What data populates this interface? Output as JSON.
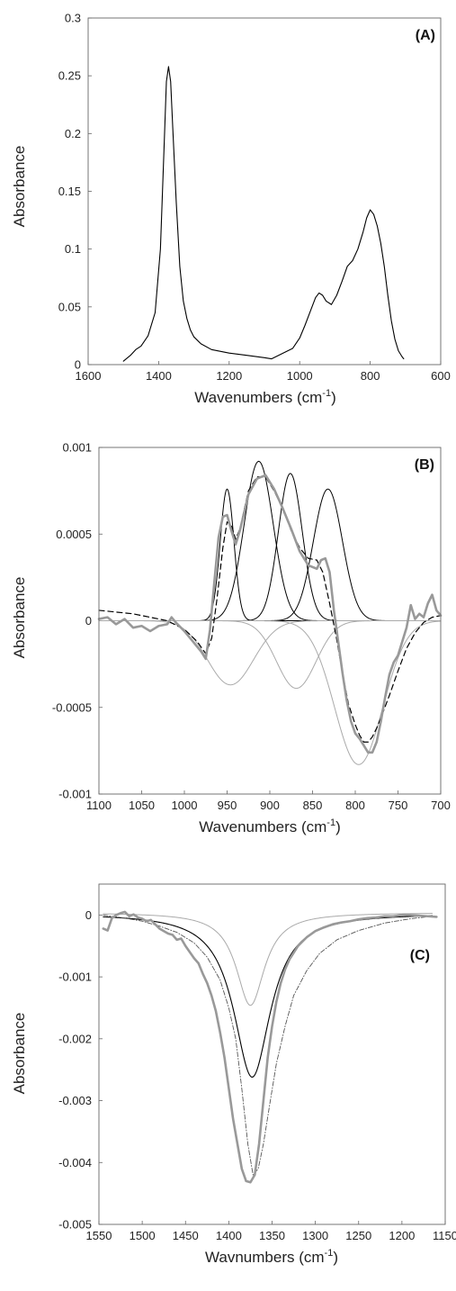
{
  "chart_data": [
    {
      "type": "line",
      "panel_label": "(A)",
      "xlabel": "Wavenumbers (cm",
      "xlabel_sup": "-1",
      "xlabel_end": ")",
      "ylabel": "Absorbance",
      "xlim": [
        1600,
        600
      ],
      "ylim": [
        0,
        0.3
      ],
      "x_ticks": [
        1600,
        1400,
        1200,
        1000,
        800,
        600
      ],
      "x_tick_labels": [
        "1600",
        "1400",
        "1200",
        "1000",
        "800",
        "600"
      ],
      "y_ticks": [
        0,
        0.05,
        0.1,
        0.15,
        0.2,
        0.25,
        0.3
      ],
      "y_tick_labels": [
        "0",
        "0.05",
        "0.1",
        "0.15",
        "0.2",
        "0.25",
        "0.3"
      ],
      "series": [
        {
          "color": "#000000",
          "style": "solid",
          "width": 1.1,
          "x": [
            1500,
            1480,
            1465,
            1450,
            1430,
            1410,
            1395,
            1385,
            1378,
            1372,
            1366,
            1360,
            1350,
            1340,
            1330,
            1320,
            1310,
            1300,
            1280,
            1250,
            1200,
            1150,
            1100,
            1080,
            1060,
            1040,
            1020,
            1000,
            985,
            970,
            955,
            945,
            935,
            925,
            910,
            895,
            880,
            865,
            850,
            835,
            820,
            810,
            800,
            790,
            780,
            770,
            760,
            750,
            740,
            730,
            720,
            710,
            705
          ],
          "y": [
            0.003,
            0.008,
            0.013,
            0.016,
            0.025,
            0.045,
            0.1,
            0.185,
            0.245,
            0.258,
            0.245,
            0.205,
            0.14,
            0.085,
            0.055,
            0.04,
            0.03,
            0.024,
            0.018,
            0.013,
            0.01,
            0.008,
            0.006,
            0.005,
            0.008,
            0.011,
            0.014,
            0.023,
            0.034,
            0.046,
            0.058,
            0.062,
            0.06,
            0.055,
            0.052,
            0.06,
            0.072,
            0.085,
            0.09,
            0.1,
            0.115,
            0.127,
            0.134,
            0.13,
            0.12,
            0.105,
            0.085,
            0.06,
            0.038,
            0.022,
            0.012,
            0.007,
            0.005
          ]
        }
      ]
    },
    {
      "type": "line",
      "panel_label": "(B)",
      "xlabel": "Wavenumbers (cm",
      "xlabel_sup": "-1",
      "xlabel_end": ")",
      "ylabel": "Absorbance",
      "xlim": [
        1100,
        700
      ],
      "ylim": [
        -0.001,
        0.001
      ],
      "x_ticks": [
        1100,
        1050,
        1000,
        950,
        900,
        850,
        800,
        750,
        700
      ],
      "x_tick_labels": [
        "1100",
        "1050",
        "1000",
        "950",
        "900",
        "850",
        "800",
        "750",
        "700"
      ],
      "y_ticks": [
        -0.001,
        -0.0005,
        0,
        0.0005,
        0.001
      ],
      "y_tick_labels": [
        "-0.001",
        "-0.0005",
        "0",
        "0.0005",
        "0.001"
      ],
      "gaussians": [
        {
          "color": "#000000",
          "width": 1.0,
          "center": 950,
          "height": 0.00076,
          "sigma": 8
        },
        {
          "color": "#000000",
          "width": 1.0,
          "center": 913,
          "height": 0.00092,
          "sigma": 17
        },
        {
          "color": "#000000",
          "width": 1.0,
          "center": 876,
          "height": 0.00085,
          "sigma": 14
        },
        {
          "color": "#000000",
          "width": 1.0,
          "center": 832,
          "height": 0.00076,
          "sigma": 17
        },
        {
          "color": "#aaaaaa",
          "width": 1.0,
          "center": 946,
          "height": -0.00037,
          "sigma": 27
        },
        {
          "color": "#aaaaaa",
          "width": 1.0,
          "center": 869,
          "height": -0.00039,
          "sigma": 23
        },
        {
          "color": "#aaaaaa",
          "width": 1.0,
          "center": 796,
          "height": -0.00083,
          "sigma": 28
        }
      ],
      "series": [
        {
          "color": "#000000",
          "style": "dashed",
          "width": 1.2,
          "x": [
            1100,
            1080,
            1060,
            1040,
            1020,
            1000,
            985,
            975,
            968,
            962,
            955,
            950,
            945,
            940,
            935,
            925,
            915,
            905,
            895,
            885,
            875,
            865,
            855,
            845,
            838,
            830,
            822,
            815,
            808,
            800,
            795,
            790,
            785,
            780,
            775,
            770,
            760,
            750,
            740,
            730,
            720,
            710,
            700
          ],
          "y": [
            6e-05,
            5e-05,
            4e-05,
            2e-05,
            0.0,
            -5e-05,
            -0.00012,
            -0.00019,
            -0.0001,
            0.00012,
            0.00042,
            0.00057,
            0.00055,
            0.00047,
            0.00053,
            0.00075,
            0.00083,
            0.00083,
            0.00075,
            0.00065,
            0.00052,
            0.00042,
            0.00036,
            0.00035,
            0.00028,
            0.0001,
            -0.0001,
            -0.0003,
            -0.00048,
            -0.0006,
            -0.00066,
            -0.0007,
            -0.0007,
            -0.00067,
            -0.00062,
            -0.00056,
            -0.00043,
            -0.00029,
            -0.00016,
            -7e-05,
            -1e-05,
            2e-05,
            3e-05
          ]
        },
        {
          "color": "#999999",
          "style": "solid",
          "width": 2.6,
          "x": [
            1100,
            1090,
            1080,
            1070,
            1060,
            1050,
            1040,
            1030,
            1020,
            1015,
            1010,
            1000,
            990,
            980,
            975,
            970,
            965,
            960,
            955,
            950,
            945,
            940,
            935,
            925,
            915,
            905,
            895,
            885,
            875,
            865,
            855,
            845,
            840,
            835,
            830,
            825,
            820,
            815,
            810,
            805,
            800,
            795,
            790,
            785,
            780,
            775,
            770,
            765,
            760,
            755,
            750,
            745,
            740,
            735,
            730,
            725,
            720,
            715,
            710,
            705,
            700
          ],
          "y": [
            1e-05,
            2e-05,
            -2e-05,
            1e-05,
            -4e-05,
            -3e-05,
            -6e-05,
            -3e-05,
            -2e-05,
            2e-05,
            -1e-05,
            -6e-05,
            -0.00012,
            -0.00018,
            -0.00022,
            -5e-05,
            0.00022,
            0.00048,
            0.0006,
            0.00061,
            0.00052,
            0.00044,
            0.00052,
            0.00073,
            0.00082,
            0.00084,
            0.00076,
            0.00065,
            0.00053,
            0.0004,
            0.00032,
            0.0003,
            0.00035,
            0.00036,
            0.00028,
            6e-05,
            -0.00012,
            -0.0003,
            -0.00046,
            -0.00058,
            -0.00065,
            -0.00068,
            -0.00072,
            -0.00076,
            -0.00076,
            -0.0007,
            -0.00058,
            -0.00044,
            -0.00031,
            -0.00024,
            -0.0002,
            -0.00012,
            -4e-05,
            9e-05,
            1e-05,
            4e-05,
            2e-05,
            0.0001,
            0.00015,
            6e-05,
            3e-05
          ]
        }
      ]
    },
    {
      "type": "line",
      "panel_label": "(C)",
      "xlabel": "Wavnumbers (cm",
      "xlabel_sup": "-1",
      "xlabel_end": ")",
      "ylabel": "Absorbance",
      "xlim": [
        1550,
        1150
      ],
      "ylim": [
        -0.005,
        0.0005
      ],
      "x_ticks": [
        1550,
        1500,
        1450,
        1400,
        1350,
        1300,
        1250,
        1200,
        1150
      ],
      "x_tick_labels": [
        "1550",
        "1500",
        "1450",
        "1400",
        "1350",
        "1300",
        "1250",
        "1200",
        "1150"
      ],
      "y_ticks": [
        -0.005,
        -0.004,
        -0.003,
        -0.002,
        -0.001,
        0
      ],
      "y_tick_labels": [
        "-0.005",
        "-0.004",
        "-0.003",
        "-0.002",
        "-0.001",
        "0"
      ],
      "lorentzians": [
        {
          "color": "#aaaaaa",
          "width": 1.0,
          "center": 1375,
          "height": -0.0015,
          "gamma": 20,
          "offset": 4e-05
        },
        {
          "color": "#000000",
          "width": 1.1,
          "center": 1373,
          "height": -0.00265,
          "gamma": 26,
          "offset": 3e-05
        }
      ],
      "series": [
        {
          "color": "#555555",
          "style": "dashdot",
          "width": 0.9,
          "x": [
            1545,
            1520,
            1500,
            1480,
            1460,
            1440,
            1425,
            1410,
            1400,
            1392,
            1385,
            1378,
            1372,
            1366,
            1360,
            1352,
            1345,
            1335,
            1325,
            1310,
            1295,
            1275,
            1250,
            1220,
            1190,
            1165
          ],
          "y": [
            0.0,
            -5e-05,
            -0.0001,
            -0.00018,
            -0.00028,
            -0.00045,
            -0.00068,
            -0.00105,
            -0.0015,
            -0.002,
            -0.0028,
            -0.0037,
            -0.0042,
            -0.0041,
            -0.0037,
            -0.003,
            -0.0024,
            -0.0018,
            -0.0013,
            -0.0009,
            -0.00062,
            -0.0004,
            -0.00025,
            -0.00013,
            -6e-05,
            -2e-05
          ]
        },
        {
          "color": "#999999",
          "style": "solid",
          "width": 2.6,
          "x": [
            1545,
            1540,
            1535,
            1530,
            1525,
            1520,
            1515,
            1510,
            1505,
            1500,
            1495,
            1490,
            1485,
            1480,
            1475,
            1470,
            1465,
            1460,
            1455,
            1450,
            1445,
            1440,
            1435,
            1430,
            1425,
            1420,
            1415,
            1410,
            1405,
            1400,
            1395,
            1390,
            1385,
            1380,
            1375,
            1370,
            1365,
            1360,
            1355,
            1350,
            1345,
            1340,
            1335,
            1330,
            1320,
            1310,
            1300,
            1290,
            1280,
            1270,
            1260,
            1250,
            1240,
            1230,
            1220,
            1210,
            1200,
            1190,
            1180,
            1170,
            1160
          ],
          "y": [
            -0.00022,
            -0.00025,
            -5e-05,
            0.0,
            3e-05,
            5e-05,
            -2e-05,
            1e-05,
            -4e-05,
            -6e-05,
            -0.0001,
            -8e-05,
            -0.00015,
            -0.00022,
            -0.00026,
            -0.0003,
            -0.00032,
            -0.0004,
            -0.00038,
            -0.0005,
            -0.0006,
            -0.0007,
            -0.00078,
            -0.00095,
            -0.0011,
            -0.0013,
            -0.00155,
            -0.0019,
            -0.0023,
            -0.0028,
            -0.0033,
            -0.0037,
            -0.0041,
            -0.0043,
            -0.00432,
            -0.0042,
            -0.0037,
            -0.003,
            -0.0023,
            -0.0018,
            -0.0014,
            -0.0011,
            -0.00088,
            -0.00072,
            -0.0005,
            -0.00036,
            -0.00026,
            -0.0002,
            -0.00015,
            -0.00012,
            -0.0001,
            -7e-05,
            -5e-05,
            -4e-05,
            -2e-05,
            -2e-05,
            0.0,
            0.0,
            -1e-05,
            -2e-05,
            -3e-05
          ]
        }
      ]
    }
  ]
}
